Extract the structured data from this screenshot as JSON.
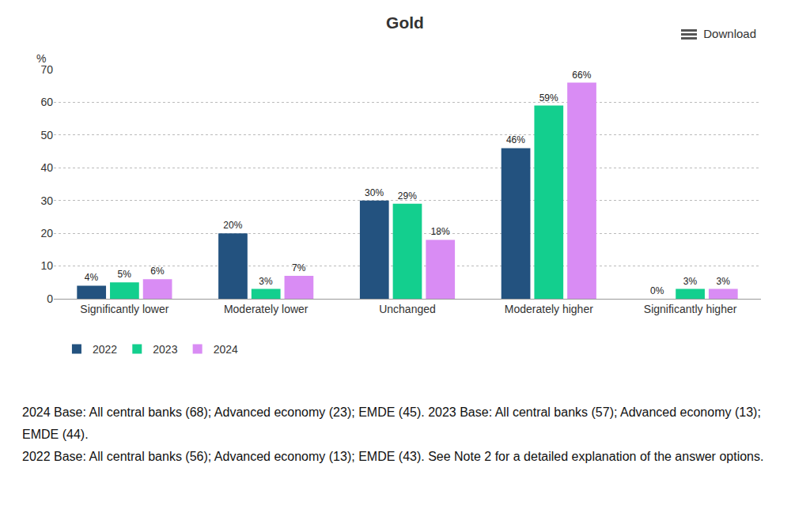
{
  "chart_data": {
    "type": "bar",
    "title": "Gold",
    "ylabel": "%",
    "categories": [
      "Significantly lower",
      "Moderately lower",
      "Unchanged",
      "Moderately higher",
      "Significantly higher"
    ],
    "series": [
      {
        "name": "2022",
        "color": "#23527f",
        "values": [
          4,
          20,
          30,
          46,
          0
        ],
        "value_labels": [
          "4%",
          "20%",
          "30%",
          "46%",
          "0%"
        ]
      },
      {
        "name": "2023",
        "color": "#13cf8e",
        "values": [
          5,
          3,
          29,
          59,
          3
        ],
        "value_labels": [
          "5%",
          "3%",
          "29%",
          "59%",
          "3%"
        ]
      },
      {
        "name": "2024",
        "color": "#d98cf4",
        "values": [
          6,
          7,
          18,
          66,
          3
        ],
        "value_labels": [
          "6%",
          "7%",
          "18%",
          "66%",
          "3%"
        ]
      }
    ],
    "ylim": [
      0,
      70
    ],
    "yticks": [
      0,
      10,
      20,
      30,
      40,
      50,
      60,
      70
    ],
    "grid": true,
    "legend": "bottom",
    "data_labels": true
  },
  "page": {
    "button": "Download",
    "notes": [
      "2024 Base: All central banks (68); Advanced economy (23); EMDE (45). 2023 Base: All central banks (57); Advanced economy (13); EMDE (44).",
      "2022 Base: All central banks (56); Advanced economy (13); EMDE (43). See Note 2 for a detailed explanation of the answer options."
    ]
  }
}
